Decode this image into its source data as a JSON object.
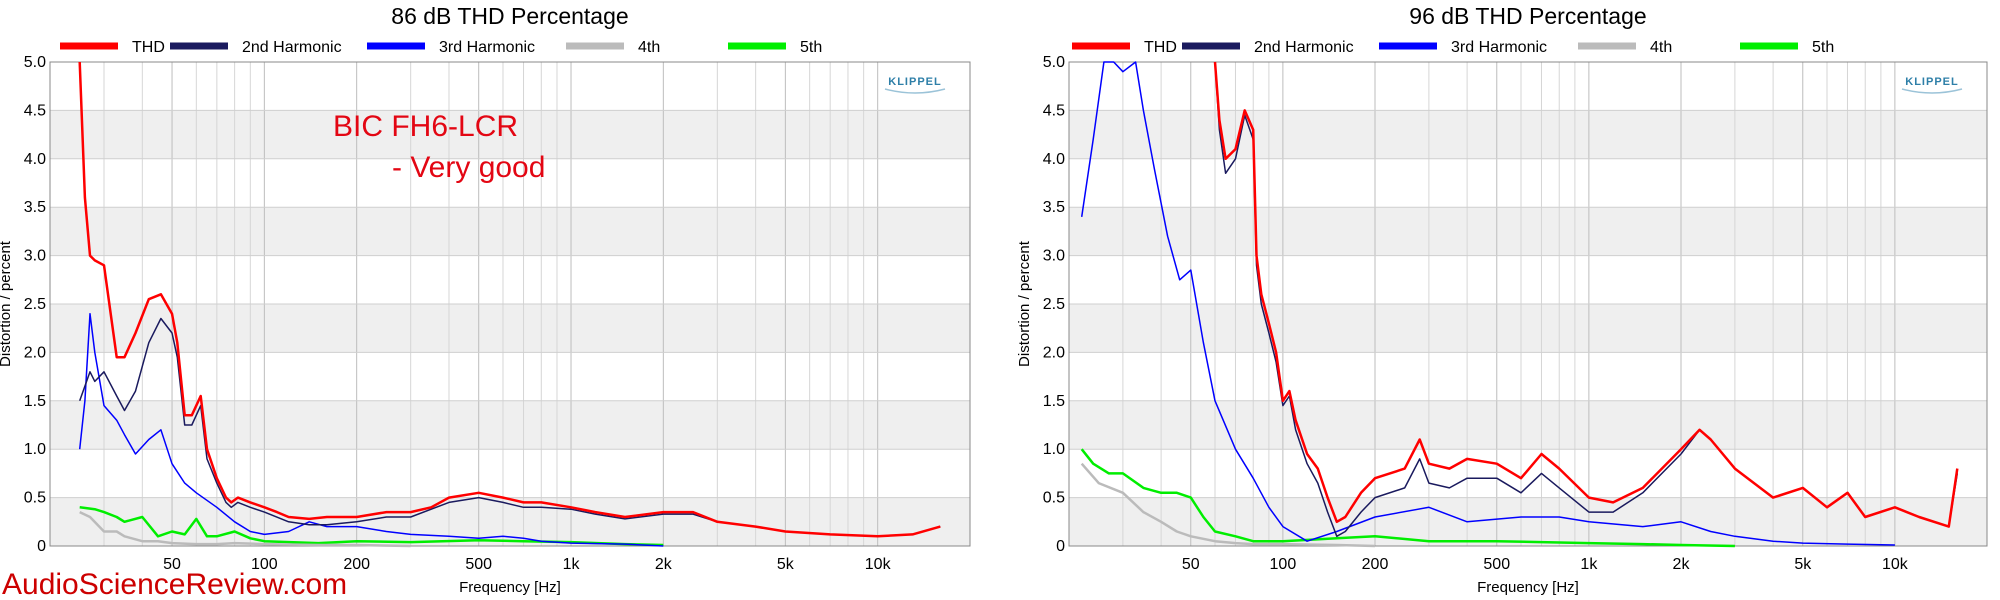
{
  "watermark": "AudioScienceReview.com",
  "chart_data": [
    {
      "type": "line",
      "title": "86 dB THD Percentage",
      "xlabel": "Frequency [Hz]",
      "ylabel": "Distortion / percent",
      "xscale": "log",
      "xlim": [
        20,
        20000
      ],
      "ylim": [
        0,
        5
      ],
      "yticks": [
        "0",
        "0.5",
        "1.0",
        "1.5",
        "2.0",
        "2.5",
        "3.0",
        "3.5",
        "4.0",
        "4.5",
        "5.0"
      ],
      "xticks": [
        "50",
        "100",
        "200",
        "500",
        "1k",
        "2k",
        "5k",
        "10k"
      ],
      "legend": "top",
      "brand": "KLIPPEL",
      "annotation": [
        "BIC FH6-LCR",
        "- Very good"
      ],
      "series": [
        {
          "name": "THD",
          "color": "#ff0000",
          "x": [
            25,
            26,
            27,
            28,
            30,
            33,
            35,
            38,
            42,
            46,
            50,
            52,
            55,
            58,
            62,
            65,
            70,
            75,
            78,
            82,
            90,
            100,
            110,
            120,
            140,
            160,
            200,
            250,
            300,
            350,
            400,
            500,
            600,
            700,
            800,
            1000,
            1200,
            1500,
            2000,
            2500,
            3000,
            4000,
            5000,
            7000,
            10000,
            13000,
            16000
          ],
          "y": [
            5.0,
            3.6,
            3.0,
            2.95,
            2.9,
            1.95,
            1.95,
            2.2,
            2.55,
            2.6,
            2.4,
            2.1,
            1.35,
            1.35,
            1.55,
            1.0,
            0.7,
            0.5,
            0.45,
            0.5,
            0.45,
            0.4,
            0.35,
            0.3,
            0.28,
            0.3,
            0.3,
            0.35,
            0.35,
            0.4,
            0.5,
            0.55,
            0.5,
            0.45,
            0.45,
            0.4,
            0.35,
            0.3,
            0.35,
            0.35,
            0.25,
            0.2,
            0.15,
            0.12,
            0.1,
            0.12,
            0.2
          ]
        },
        {
          "name": "2nd Harmonic",
          "color": "#1a1a5e",
          "x": [
            25,
            27,
            28,
            30,
            33,
            35,
            38,
            42,
            46,
            50,
            52,
            55,
            58,
            62,
            65,
            70,
            75,
            78,
            82,
            90,
            100,
            120,
            140,
            160,
            200,
            250,
            300,
            400,
            500,
            600,
            700,
            800,
            1000,
            1200,
            1500,
            2000,
            2500,
            3000,
            4000,
            5000,
            7000,
            10000,
            13000,
            16000
          ],
          "y": [
            1.5,
            1.8,
            1.7,
            1.8,
            1.55,
            1.4,
            1.6,
            2.1,
            2.35,
            2.2,
            1.95,
            1.25,
            1.25,
            1.45,
            0.9,
            0.65,
            0.45,
            0.4,
            0.45,
            0.4,
            0.35,
            0.25,
            0.22,
            0.22,
            0.25,
            0.3,
            0.3,
            0.45,
            0.5,
            0.45,
            0.4,
            0.4,
            0.38,
            0.33,
            0.28,
            0.33,
            0.33,
            0.25,
            0.2,
            0.15,
            0.12,
            0.1,
            0.12,
            0.2
          ]
        },
        {
          "name": "3rd Harmonic",
          "color": "#0000ff",
          "x": [
            25,
            26,
            27,
            28,
            30,
            33,
            35,
            38,
            42,
            46,
            50,
            55,
            60,
            70,
            80,
            90,
            100,
            120,
            140,
            160,
            200,
            250,
            300,
            400,
            500,
            600,
            700,
            800,
            1000,
            1500,
            2000
          ],
          "y": [
            1.0,
            1.5,
            2.4,
            2.0,
            1.45,
            1.3,
            1.15,
            0.95,
            1.1,
            1.2,
            0.85,
            0.65,
            0.55,
            0.4,
            0.25,
            0.15,
            0.12,
            0.15,
            0.25,
            0.2,
            0.2,
            0.15,
            0.12,
            0.1,
            0.08,
            0.1,
            0.08,
            0.05,
            0.03,
            0.02,
            0.0
          ]
        },
        {
          "name": "4th",
          "color": "#bbbbbb",
          "x": [
            25,
            27,
            30,
            33,
            35,
            40,
            45,
            50,
            60,
            70,
            80,
            100,
            150,
            200,
            300
          ],
          "y": [
            0.35,
            0.3,
            0.15,
            0.15,
            0.1,
            0.05,
            0.05,
            0.03,
            0.02,
            0.02,
            0.03,
            0.02,
            0.01,
            0.01,
            0.0
          ]
        },
        {
          "name": "5th",
          "color": "#00ee00",
          "x": [
            25,
            28,
            30,
            33,
            35,
            40,
            45,
            50,
            55,
            60,
            65,
            70,
            80,
            90,
            100,
            150,
            200,
            300,
            500,
            700,
            1000,
            1500,
            2000
          ],
          "y": [
            0.4,
            0.38,
            0.35,
            0.3,
            0.25,
            0.3,
            0.1,
            0.15,
            0.12,
            0.28,
            0.1,
            0.1,
            0.15,
            0.08,
            0.05,
            0.03,
            0.05,
            0.04,
            0.06,
            0.05,
            0.04,
            0.02,
            0.01
          ]
        }
      ]
    },
    {
      "type": "line",
      "title": "96 dB THD Percentage",
      "xlabel": "Frequency [Hz]",
      "ylabel": "Distortion / percent",
      "xscale": "log",
      "xlim": [
        20,
        20000
      ],
      "ylim": [
        0,
        5
      ],
      "yticks": [
        "0",
        "0.5",
        "1.0",
        "1.5",
        "2.0",
        "2.5",
        "3.0",
        "3.5",
        "4.0",
        "4.5",
        "5.0"
      ],
      "xticks": [
        "50",
        "100",
        "200",
        "500",
        "1k",
        "2k",
        "5k",
        "10k"
      ],
      "legend": "top",
      "brand": "KLIPPEL",
      "series": [
        {
          "name": "THD",
          "color": "#ff0000",
          "x": [
            60,
            62,
            65,
            70,
            75,
            80,
            82,
            85,
            90,
            95,
            100,
            105,
            110,
            120,
            130,
            140,
            150,
            160,
            180,
            200,
            250,
            280,
            300,
            350,
            400,
            500,
            600,
            700,
            800,
            1000,
            1200,
            1500,
            2000,
            2300,
            2500,
            3000,
            4000,
            5000,
            6000,
            7000,
            8000,
            10000,
            12000,
            15000,
            16000
          ],
          "y": [
            5.0,
            4.4,
            4.0,
            4.1,
            4.5,
            4.3,
            3.0,
            2.6,
            2.3,
            2.0,
            1.5,
            1.6,
            1.3,
            0.95,
            0.8,
            0.5,
            0.25,
            0.3,
            0.55,
            0.7,
            0.8,
            1.1,
            0.85,
            0.8,
            0.9,
            0.85,
            0.7,
            0.95,
            0.8,
            0.5,
            0.45,
            0.6,
            1.0,
            1.2,
            1.1,
            0.8,
            0.5,
            0.6,
            0.4,
            0.55,
            0.3,
            0.4,
            0.3,
            0.2,
            0.8
          ]
        },
        {
          "name": "2nd Harmonic",
          "color": "#1a1a5e",
          "x": [
            60,
            62,
            65,
            70,
            75,
            80,
            82,
            85,
            90,
            95,
            100,
            105,
            110,
            120,
            130,
            140,
            150,
            160,
            180,
            200,
            250,
            280,
            300,
            350,
            400,
            500,
            600,
            700,
            800,
            1000,
            1200,
            1500,
            2000,
            2300,
            2500,
            3000,
            4000,
            5000,
            6000,
            7000,
            8000,
            10000,
            12000,
            15000,
            16000
          ],
          "y": [
            5.0,
            4.3,
            3.85,
            4.0,
            4.45,
            4.2,
            2.9,
            2.5,
            2.2,
            1.9,
            1.45,
            1.55,
            1.2,
            0.85,
            0.65,
            0.35,
            0.1,
            0.15,
            0.35,
            0.5,
            0.6,
            0.9,
            0.65,
            0.6,
            0.7,
            0.7,
            0.55,
            0.75,
            0.6,
            0.35,
            0.35,
            0.55,
            0.95,
            1.2,
            1.1,
            0.8,
            0.5,
            0.6,
            0.4,
            0.55,
            0.3,
            0.4,
            0.3,
            0.2,
            0.75
          ]
        },
        {
          "name": "3rd Harmonic",
          "color": "#0000ff",
          "x": [
            22,
            24,
            26,
            27,
            28,
            30,
            33,
            35,
            38,
            42,
            46,
            50,
            55,
            60,
            70,
            80,
            90,
            100,
            120,
            150,
            200,
            300,
            400,
            600,
            800,
            1000,
            1500,
            2000,
            2500,
            3000,
            4000,
            5000,
            7000,
            10000
          ],
          "y": [
            3.4,
            4.2,
            5.0,
            5.0,
            5.0,
            4.9,
            5.0,
            4.5,
            3.9,
            3.2,
            2.75,
            2.85,
            2.1,
            1.5,
            1.0,
            0.7,
            0.4,
            0.2,
            0.05,
            0.15,
            0.3,
            0.4,
            0.25,
            0.3,
            0.3,
            0.25,
            0.2,
            0.25,
            0.15,
            0.1,
            0.05,
            0.03,
            0.02,
            0.01
          ]
        },
        {
          "name": "4th",
          "color": "#bbbbbb",
          "x": [
            22,
            25,
            30,
            35,
            40,
            45,
            50,
            60,
            70,
            80,
            100,
            150,
            200
          ],
          "y": [
            0.85,
            0.65,
            0.55,
            0.35,
            0.25,
            0.15,
            0.1,
            0.05,
            0.03,
            0.02,
            0.02,
            0.01,
            0.0
          ]
        },
        {
          "name": "5th",
          "color": "#00ee00",
          "x": [
            22,
            24,
            27,
            30,
            35,
            40,
            45,
            50,
            55,
            60,
            70,
            80,
            100,
            150,
            200,
            300,
            500,
            700,
            1000,
            1500,
            2000,
            3000
          ],
          "y": [
            1.0,
            0.85,
            0.75,
            0.75,
            0.6,
            0.55,
            0.55,
            0.5,
            0.3,
            0.15,
            0.1,
            0.05,
            0.05,
            0.08,
            0.1,
            0.05,
            0.05,
            0.04,
            0.03,
            0.02,
            0.01,
            0.0
          ]
        }
      ]
    }
  ]
}
